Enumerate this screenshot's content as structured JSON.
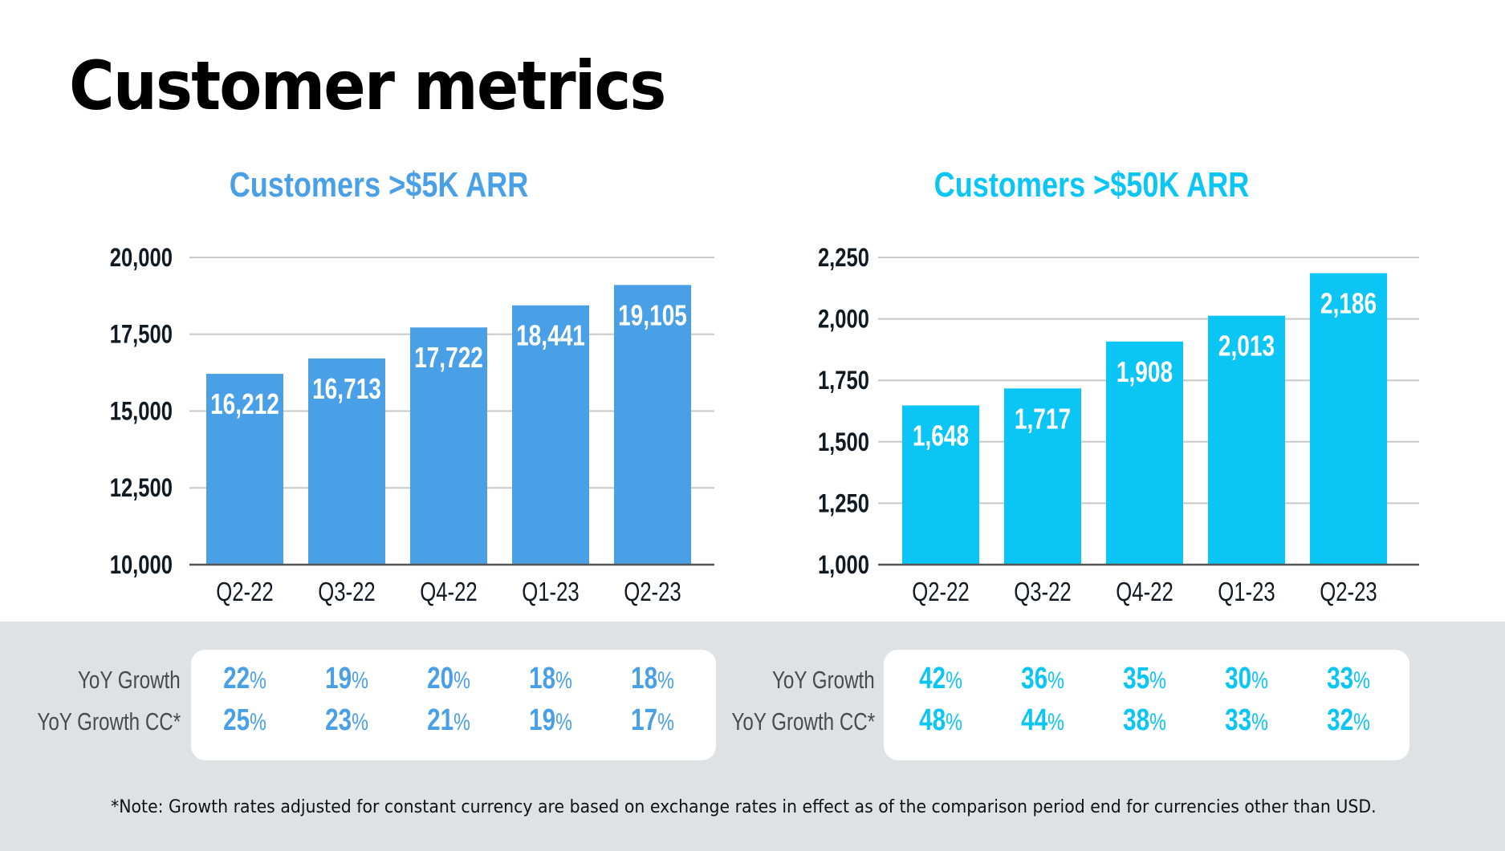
{
  "page": {
    "title": "Customer metrics",
    "footnote": "*Note: Growth rates adjusted for constant currency are based on exchange rates in effect as of the comparison period end for currencies other than USD."
  },
  "colors": {
    "chart1_bar": "#4aa0e6",
    "chart2_bar": "#0bc5f5",
    "gridline": "#c8c8c8",
    "axis": "#555555",
    "band": "#dfe2e5"
  },
  "chart_data": [
    {
      "type": "bar",
      "title": "Customers >$5K ARR",
      "xlabel": "",
      "ylabel": "",
      "categories": [
        "Q2-22",
        "Q3-22",
        "Q4-22",
        "Q1-23",
        "Q2-23"
      ],
      "values": [
        16212,
        16713,
        17722,
        18441,
        19105
      ],
      "value_labels": [
        "16,212",
        "16,713",
        "17,722",
        "18,441",
        "19,105"
      ],
      "ylim": [
        10000,
        20000
      ],
      "yticks": [
        10000,
        12500,
        15000,
        17500,
        20000
      ],
      "ytick_labels": [
        "10,000",
        "12,500",
        "15,000",
        "17,500",
        "20,000"
      ],
      "grid": true,
      "legend": "none",
      "growth": {
        "rows": [
          {
            "label": "YoY Growth",
            "values": [
              "22",
              "19",
              "20",
              "18",
              "18"
            ]
          },
          {
            "label": "YoY Growth CC*",
            "values": [
              "25",
              "23",
              "21",
              "19",
              "17"
            ]
          }
        ],
        "unit": "%"
      }
    },
    {
      "type": "bar",
      "title": "Customers >$50K ARR",
      "xlabel": "",
      "ylabel": "",
      "categories": [
        "Q2-22",
        "Q3-22",
        "Q4-22",
        "Q1-23",
        "Q2-23"
      ],
      "values": [
        1648,
        1717,
        1908,
        2013,
        2186
      ],
      "value_labels": [
        "1,648",
        "1,717",
        "1,908",
        "2,013",
        "2,186"
      ],
      "ylim": [
        1000,
        2250
      ],
      "yticks": [
        1000,
        1250,
        1500,
        1750,
        2000,
        2250
      ],
      "ytick_labels": [
        "1,000",
        "1,250",
        "1,500",
        "1,750",
        "2,000",
        "2,250"
      ],
      "grid": true,
      "legend": "none",
      "growth": {
        "rows": [
          {
            "label": "YoY Growth",
            "values": [
              "42",
              "36",
              "35",
              "30",
              "33"
            ]
          },
          {
            "label": "YoY Growth CC*",
            "values": [
              "48",
              "44",
              "38",
              "33",
              "32"
            ]
          }
        ],
        "unit": "%"
      }
    }
  ]
}
